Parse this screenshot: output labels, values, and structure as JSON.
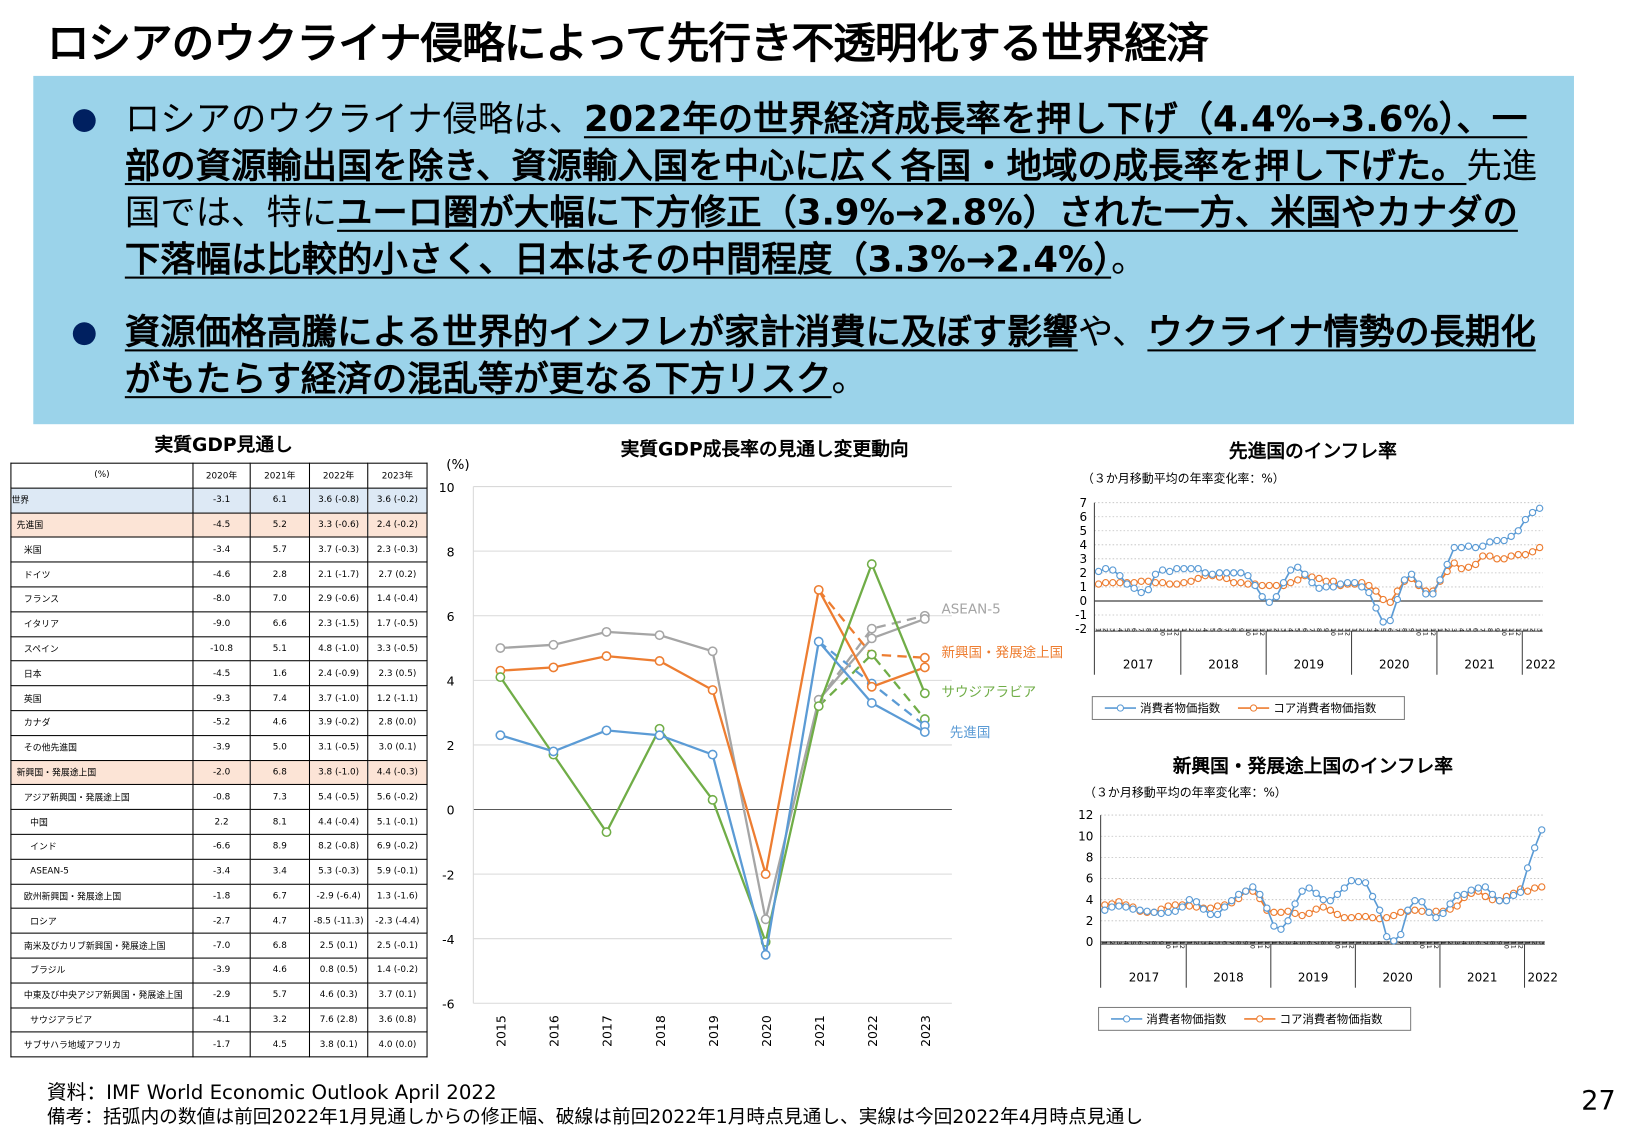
{
  "title": "ロシアのウクライナ侵略によって先行き不透明化する世界経済",
  "summary": {
    "bullets": [
      {
        "segments": [
          {
            "text": "ロシアのウクライナ侵略は、",
            "emphasis": false
          },
          {
            "text": "2022年の世界経済成長率を押し下げ（4.4%→3.6%）、一部の資源輸出国を除き、資源輸入国を中心に広く各国・地域の成長率を押し下げた。",
            "emphasis": true
          },
          {
            "text": "先進国では、特に",
            "emphasis": false
          },
          {
            "text": "ユーロ圏が大幅に下方修正（3.9%→2.8%）された一方、米国やカナダの下落幅は比較的小さく、日本はその中間程度（3.3%→2.4%）",
            "emphasis": true
          },
          {
            "text": "。",
            "emphasis": false
          }
        ]
      },
      {
        "segments": [
          {
            "text": "資源価格高騰による世界的インフレが家計消費に及ぼす影響",
            "emphasis": true
          },
          {
            "text": "や、",
            "emphasis": false
          },
          {
            "text": "ウクライナ情勢の長期化がもたらす経済の混乱等が更なる下方リスク",
            "emphasis": true
          },
          {
            "text": "。",
            "emphasis": false
          }
        ]
      }
    ]
  },
  "gdp_table": {
    "title": "実質GDP見通し",
    "headers": [
      "(%)",
      "2020年",
      "2021年",
      "2022年",
      "2023年"
    ],
    "rows": [
      {
        "label": "世界",
        "level": 0,
        "highlight": "world",
        "values": [
          "-3.1",
          "6.1",
          "3.6 (-0.8)",
          "3.6 (-0.2)"
        ]
      },
      {
        "label": "先進国",
        "level": 1,
        "highlight": "group",
        "values": [
          "-4.5",
          "5.2",
          "3.3 (-0.6)",
          "2.4 (-0.2)"
        ]
      },
      {
        "label": "米国",
        "level": 2,
        "values": [
          "-3.4",
          "5.7",
          "3.7 (-0.3)",
          "2.3 (-0.3)"
        ]
      },
      {
        "label": "ドイツ",
        "level": 2,
        "values": [
          "-4.6",
          "2.8",
          "2.1 (-1.7)",
          "2.7 (0.2)"
        ]
      },
      {
        "label": "フランス",
        "level": 2,
        "values": [
          "-8.0",
          "7.0",
          "2.9 (-0.6)",
          "1.4 (-0.4)"
        ]
      },
      {
        "label": "イタリア",
        "level": 2,
        "values": [
          "-9.0",
          "6.6",
          "2.3 (-1.5)",
          "1.7 (-0.5)"
        ]
      },
      {
        "label": "スペイン",
        "level": 2,
        "values": [
          "-10.8",
          "5.1",
          "4.8 (-1.0)",
          "3.3 (-0.5)"
        ]
      },
      {
        "label": "日本",
        "level": 2,
        "values": [
          "-4.5",
          "1.6",
          "2.4 (-0.9)",
          "2.3 (0.5)"
        ]
      },
      {
        "label": "英国",
        "level": 2,
        "values": [
          "-9.3",
          "7.4",
          "3.7 (-1.0)",
          "1.2 (-1.1)"
        ]
      },
      {
        "label": "カナダ",
        "level": 2,
        "values": [
          "-5.2",
          "4.6",
          "3.9 (-0.2)",
          "2.8 (0.0)"
        ]
      },
      {
        "label": "その他先進国",
        "level": 2,
        "values": [
          "-3.9",
          "5.0",
          "3.1 (-0.5)",
          "3.0 (0.1)"
        ]
      },
      {
        "label": "新興国・発展途上国",
        "level": 1,
        "highlight": "group",
        "values": [
          "-2.0",
          "6.8",
          "3.8 (-1.0)",
          "4.4 (-0.3)"
        ]
      },
      {
        "label": "アジア新興国・発展途上国",
        "level": 2,
        "values": [
          "-0.8",
          "7.3",
          "5.4 (-0.5)",
          "5.6 (-0.2)"
        ]
      },
      {
        "label": "中国",
        "level": 3,
        "values": [
          "2.2",
          "8.1",
          "4.4 (-0.4)",
          "5.1 (-0.1)"
        ]
      },
      {
        "label": "インド",
        "level": 3,
        "values": [
          "-6.6",
          "8.9",
          "8.2 (-0.8)",
          "6.9 (-0.2)"
        ]
      },
      {
        "label": "ASEAN-5",
        "level": 3,
        "values": [
          "-3.4",
          "3.4",
          "5.3 (-0.3)",
          "5.9 (-0.1)"
        ]
      },
      {
        "label": "欧州新興国・発展途上国",
        "level": 2,
        "values": [
          "-1.8",
          "6.7",
          "-2.9 (-6.4)",
          "1.3 (-1.6)"
        ]
      },
      {
        "label": "ロシア",
        "level": 3,
        "values": [
          "-2.7",
          "4.7",
          "-8.5 (-11.3)",
          "-2.3 (-4.4)"
        ]
      },
      {
        "label": "南米及びカリブ新興国・発展途上国",
        "level": 2,
        "values": [
          "-7.0",
          "6.8",
          "2.5 (0.1)",
          "2.5 (-0.1)"
        ]
      },
      {
        "label": "ブラジル",
        "level": 3,
        "values": [
          "-3.9",
          "4.6",
          "0.8 (0.5)",
          "1.4 (-0.2)"
        ]
      },
      {
        "label": "中東及び中央アジア新興国・発展途上国",
        "level": 2,
        "values": [
          "-2.9",
          "5.7",
          "4.6 (0.3)",
          "3.7 (0.1)"
        ]
      },
      {
        "label": "サウジアラビア",
        "level": 3,
        "values": [
          "-4.1",
          "3.2",
          "7.6 (2.8)",
          "3.6 (0.8)"
        ]
      },
      {
        "label": "サブサハラ地域アフリカ",
        "level": 2,
        "values": [
          "-1.7",
          "4.5",
          "3.8 (0.1)",
          "4.0 (0.0)"
        ]
      }
    ],
    "colors": {
      "world": "#dde9f5",
      "group": "#fce4d6"
    }
  },
  "chart_data": [
    {
      "type": "line",
      "title": "実質GDP成長率の見通し変更動向",
      "ylabel": "(%)",
      "x": [
        "2015",
        "2016",
        "2017",
        "2018",
        "2019",
        "2020",
        "2021",
        "2022",
        "2023"
      ],
      "ylim": [
        -6,
        10
      ],
      "yticks": [
        "10",
        "8",
        "6",
        "4",
        "2",
        "0",
        "-2",
        "-4",
        "-6"
      ],
      "grid": true,
      "legend": "right-inline",
      "note": "dashed = previous (Jan 2022) forecast, solid = current (Apr 2022) forecast",
      "series": [
        {
          "name": "ASEAN-5",
          "color": "#a5a5a5",
          "values": [
            5.0,
            5.1,
            5.5,
            5.4,
            4.9,
            -3.4,
            3.4,
            5.3,
            5.9
          ],
          "previous_forecast": {
            "x": [
              "2021",
              "2022",
              "2023"
            ],
            "values": [
              3.4,
              5.6,
              6.0
            ]
          }
        },
        {
          "name": "新興国・発展途上国",
          "color": "#ed7d31",
          "values": [
            4.3,
            4.4,
            4.75,
            4.6,
            3.7,
            -2.0,
            6.8,
            3.8,
            4.4
          ],
          "previous_forecast": {
            "x": [
              "2021",
              "2022",
              "2023"
            ],
            "values": [
              6.8,
              4.8,
              4.7
            ]
          }
        },
        {
          "name": "サウジアラビア",
          "color": "#70ad47",
          "values": [
            4.1,
            1.7,
            -0.7,
            2.5,
            0.3,
            -4.1,
            3.2,
            7.6,
            3.6
          ],
          "previous_forecast": {
            "x": [
              "2021",
              "2022",
              "2023"
            ],
            "values": [
              3.2,
              4.8,
              2.8
            ]
          }
        },
        {
          "name": "先進国",
          "color": "#5b9bd5",
          "values": [
            2.3,
            1.8,
            2.45,
            2.3,
            1.7,
            -4.5,
            5.2,
            3.3,
            2.4
          ],
          "previous_forecast": {
            "x": [
              "2021",
              "2022",
              "2023"
            ],
            "values": [
              5.2,
              3.9,
              2.6
            ]
          }
        }
      ]
    },
    {
      "type": "line",
      "title": "先進国のインフレ率",
      "subtitle": "（３か月移動平均の年率変化率：%）",
      "ylim": [
        -2,
        7
      ],
      "yticks": [
        "7",
        "6",
        "5",
        "4",
        "3",
        "2",
        "1",
        "0",
        "-1",
        "-2"
      ],
      "x_range": [
        "2017-01",
        "2022-03"
      ],
      "month_labels": [
        "1",
        "2",
        "3",
        "4",
        "5",
        "6",
        "7",
        "8",
        "9",
        "10",
        "11",
        "12"
      ],
      "year_labels": [
        "2017",
        "2018",
        "2019",
        "2020",
        "2021",
        "2022"
      ],
      "grid": true,
      "legend": "bottom",
      "series": [
        {
          "name": "消費者物価指数",
          "color": "#5b9bd5",
          "values": [
            2.1,
            2.3,
            2.2,
            1.8,
            1.2,
            0.9,
            0.6,
            0.8,
            1.9,
            2.2,
            2.1,
            2.3,
            2.3,
            2.3,
            2.3,
            2.0,
            1.9,
            2.0,
            2.0,
            2.0,
            2.0,
            1.8,
            1.1,
            0.3,
            -0.1,
            0.3,
            1.3,
            2.2,
            2.4,
            1.9,
            1.3,
            0.9,
            1.0,
            1.0,
            1.2,
            1.3,
            1.3,
            1.0,
            0.6,
            -0.5,
            -1.5,
            -1.4,
            0.1,
            1.5,
            1.9,
            1.2,
            0.5,
            0.5,
            1.5,
            2.6,
            3.8,
            3.8,
            3.9,
            3.8,
            3.9,
            4.2,
            4.3,
            4.3,
            4.6,
            5.0,
            5.8,
            6.3,
            6.6
          ]
        },
        {
          "name": "コア消費者物価指数",
          "color": "#ed7d31",
          "values": [
            1.2,
            1.3,
            1.3,
            1.3,
            1.3,
            1.3,
            1.4,
            1.4,
            1.3,
            1.3,
            1.2,
            1.2,
            1.3,
            1.4,
            1.6,
            1.8,
            1.8,
            1.7,
            1.6,
            1.3,
            1.3,
            1.2,
            1.2,
            1.1,
            1.1,
            1.1,
            1.1,
            1.3,
            1.5,
            1.8,
            1.7,
            1.6,
            1.4,
            1.4,
            1.1,
            1.2,
            1.2,
            1.3,
            1.1,
            0.7,
            0.1,
            -0.1,
            0.7,
            1.4,
            1.6,
            1.1,
            0.7,
            0.7,
            1.4,
            2.1,
            2.7,
            2.3,
            2.4,
            2.6,
            3.2,
            3.2,
            3.0,
            3.0,
            3.2,
            3.3,
            3.3,
            3.5,
            3.8
          ]
        }
      ]
    },
    {
      "type": "line",
      "title": "新興国・発展途上国のインフレ率",
      "subtitle": "（３か月移動平均の年率変化率：%）",
      "ylim": [
        0,
        12
      ],
      "yticks": [
        "12",
        "10",
        "8",
        "6",
        "4",
        "2",
        "0"
      ],
      "x_range": [
        "2017-01",
        "2022-03"
      ],
      "month_labels": [
        "1",
        "2",
        "3",
        "4",
        "5",
        "6",
        "7",
        "8",
        "9",
        "10",
        "11",
        "12"
      ],
      "year_labels": [
        "2017",
        "2018",
        "2019",
        "2020",
        "2021",
        "2022"
      ],
      "grid": true,
      "legend": "bottom",
      "series": [
        {
          "name": "消費者物価指数",
          "color": "#5b9bd5",
          "values": [
            3.0,
            3.3,
            3.4,
            3.3,
            3.1,
            3.0,
            2.9,
            2.8,
            2.7,
            2.8,
            2.9,
            3.3,
            4.0,
            3.8,
            3.1,
            2.6,
            2.6,
            3.3,
            3.9,
            4.5,
            4.8,
            5.2,
            4.5,
            3.2,
            1.5,
            1.2,
            2.0,
            3.6,
            4.8,
            5.1,
            4.6,
            4.0,
            3.9,
            4.5,
            5.1,
            5.8,
            5.7,
            5.6,
            4.3,
            3.0,
            0.5,
            0.1,
            0.7,
            3.0,
            3.9,
            3.8,
            2.8,
            2.3,
            2.7,
            3.6,
            4.4,
            4.5,
            4.9,
            5.1,
            5.2,
            4.5,
            3.9,
            3.9,
            4.4,
            4.7,
            7.0,
            8.9,
            10.6
          ]
        },
        {
          "name": "コア消費者物価指数",
          "color": "#ed7d31",
          "values": [
            3.5,
            3.6,
            3.8,
            3.5,
            3.3,
            2.9,
            2.8,
            2.8,
            3.1,
            3.4,
            3.5,
            3.5,
            3.4,
            3.3,
            3.2,
            3.2,
            3.4,
            3.5,
            3.7,
            4.1,
            4.8,
            4.8,
            4.1,
            3.0,
            2.8,
            2.8,
            2.9,
            2.7,
            2.5,
            2.7,
            3.1,
            3.3,
            3.0,
            2.6,
            2.3,
            2.3,
            2.4,
            2.4,
            2.3,
            2.2,
            2.3,
            2.5,
            2.8,
            2.9,
            3.0,
            2.9,
            2.8,
            2.9,
            2.9,
            3.1,
            3.4,
            4.2,
            4.6,
            4.8,
            4.3,
            4.0,
            3.9,
            4.3,
            4.6,
            5.0,
            4.8,
            5.1,
            5.2
          ]
        }
      ]
    }
  ],
  "footer": {
    "source": "資料：IMF World Economic Outlook April 2022",
    "note": "備考：括弧内の数値は前回2022年1月見通しからの修正幅、破線は前回2022年1月時点見通し、実線は今回2022年4月時点見通し",
    "page_number": "27"
  }
}
